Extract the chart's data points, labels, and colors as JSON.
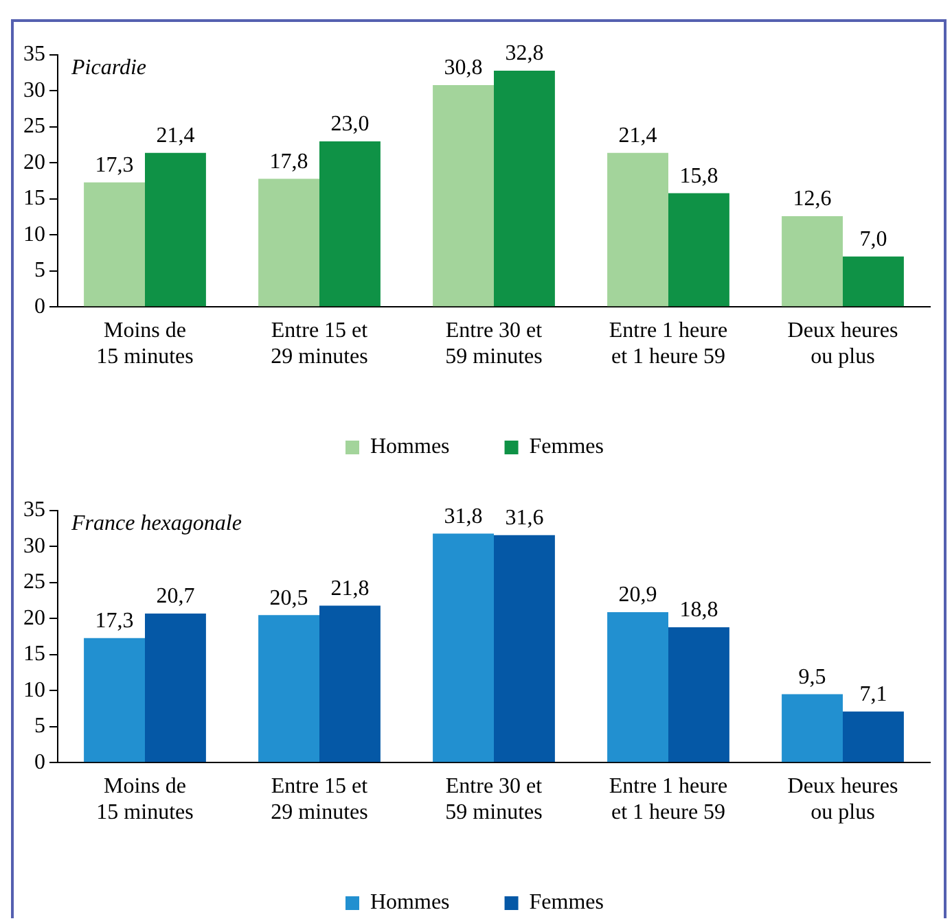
{
  "chart_data": [
    {
      "type": "bar",
      "title": "Picardie",
      "categories": [
        "Moins de\n15 minutes",
        "Entre 15 et\n29 minutes",
        "Entre 30 et\n59 minutes",
        "Entre 1 heure\net 1 heure 59",
        "Deux heures\nou plus"
      ],
      "series": [
        {
          "name": "Hommes",
          "color": "#a3d49b",
          "values": [
            17.3,
            17.8,
            30.8,
            21.4,
            12.6
          ],
          "value_labels": [
            "17,3",
            "17,8",
            "30,8",
            "21,4",
            "12,6"
          ]
        },
        {
          "name": "Femmes",
          "color": "#0f9246",
          "values": [
            21.4,
            23.0,
            32.8,
            15.8,
            7.0
          ],
          "value_labels": [
            "21,4",
            "23,0",
            "32,8",
            "15,8",
            "7,0"
          ]
        }
      ],
      "ylim": [
        0,
        35
      ],
      "yticks": [
        0,
        5,
        10,
        15,
        20,
        25,
        30,
        35
      ],
      "grid": false,
      "legend": "bottom"
    },
    {
      "type": "bar",
      "title": "France hexagonale",
      "categories": [
        "Moins de\n15 minutes",
        "Entre 15 et\n29 minutes",
        "Entre 30 et\n59 minutes",
        "Entre 1 heure\net 1 heure 59",
        "Deux heures\nou plus"
      ],
      "series": [
        {
          "name": "Hommes",
          "color": "#2290d0",
          "values": [
            17.3,
            20.5,
            31.8,
            20.9,
            9.5
          ],
          "value_labels": [
            "17,3",
            "20,5",
            "31,8",
            "20,9",
            "9,5"
          ]
        },
        {
          "name": "Femmes",
          "color": "#0558a6",
          "values": [
            20.7,
            21.8,
            31.6,
            18.8,
            7.1
          ],
          "value_labels": [
            "20,7",
            "21,8",
            "31,6",
            "18,8",
            "7,1"
          ]
        }
      ],
      "ylim": [
        0,
        35
      ],
      "yticks": [
        0,
        5,
        10,
        15,
        20,
        25,
        30,
        35
      ],
      "grid": false,
      "legend": "bottom"
    }
  ]
}
